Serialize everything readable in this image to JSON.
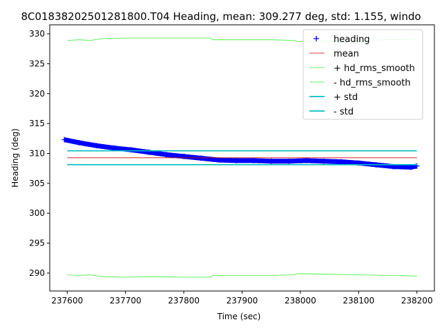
{
  "chart_data": {
    "type": "line",
    "title": "8C01838202501281800.T04 Heading, mean: 309.277 deg, std: 1.155, windo",
    "xlabel": "Time (sec)",
    "ylabel": "Heading (deg)",
    "xlim": [
      237570,
      238230
    ],
    "ylim": [
      287.0,
      331.5
    ],
    "xticks": [
      237600,
      237700,
      237800,
      237900,
      238000,
      238100,
      238200
    ],
    "yticks": [
      290,
      295,
      300,
      305,
      310,
      315,
      320,
      325,
      330
    ],
    "grid": false,
    "legend_position": "top-right",
    "series": [
      {
        "name": "heading",
        "color": "#0000ff",
        "marker": "+",
        "x": [
          237595,
          237620,
          237650,
          237680,
          237710,
          237740,
          237770,
          237800,
          237830,
          237860,
          237890,
          237920,
          237950,
          237980,
          238010,
          238040,
          238070,
          238100,
          238130,
          238160,
          238190,
          238200
        ],
        "y": [
          312.3,
          311.8,
          311.3,
          310.9,
          310.6,
          310.2,
          309.8,
          309.5,
          309.2,
          308.9,
          308.8,
          308.8,
          308.7,
          308.7,
          308.8,
          308.7,
          308.6,
          308.4,
          308.1,
          307.8,
          307.7,
          307.9
        ]
      },
      {
        "name": "mean",
        "color": "#cc0000",
        "x": [
          237600,
          238200
        ],
        "y": [
          309.277,
          309.277
        ]
      },
      {
        "name": "+ hd_rms_smooth",
        "color": "#33ee33",
        "x": [
          237600,
          237620,
          237640,
          237660,
          237700,
          237750,
          237800,
          237845,
          237850,
          237900,
          237950,
          237990,
          237995,
          238050,
          238100,
          238150,
          238200
        ],
        "y": [
          328.9,
          329.0,
          328.9,
          329.2,
          329.3,
          329.3,
          329.3,
          329.3,
          329.0,
          329.0,
          329.0,
          328.9,
          328.7,
          328.8,
          328.9,
          329.0,
          329.1
        ]
      },
      {
        "name": "- hd_rms_smooth",
        "color": "#33ee33",
        "x": [
          237600,
          237620,
          237640,
          237660,
          237700,
          237750,
          237800,
          237845,
          237850,
          237900,
          237950,
          237990,
          237995,
          238050,
          238100,
          238150,
          238200
        ],
        "y": [
          289.7,
          289.6,
          289.7,
          289.4,
          289.3,
          289.4,
          289.3,
          289.3,
          289.6,
          289.6,
          289.6,
          289.7,
          289.9,
          289.8,
          289.7,
          289.6,
          289.5
        ]
      },
      {
        "name": "+ std",
        "color": "#00bfbf",
        "x": [
          237600,
          238200
        ],
        "y": [
          310.432,
          310.432
        ]
      },
      {
        "name": "- std",
        "color": "#00bfbf",
        "x": [
          237600,
          238200
        ],
        "y": [
          308.122,
          308.122
        ]
      }
    ]
  }
}
